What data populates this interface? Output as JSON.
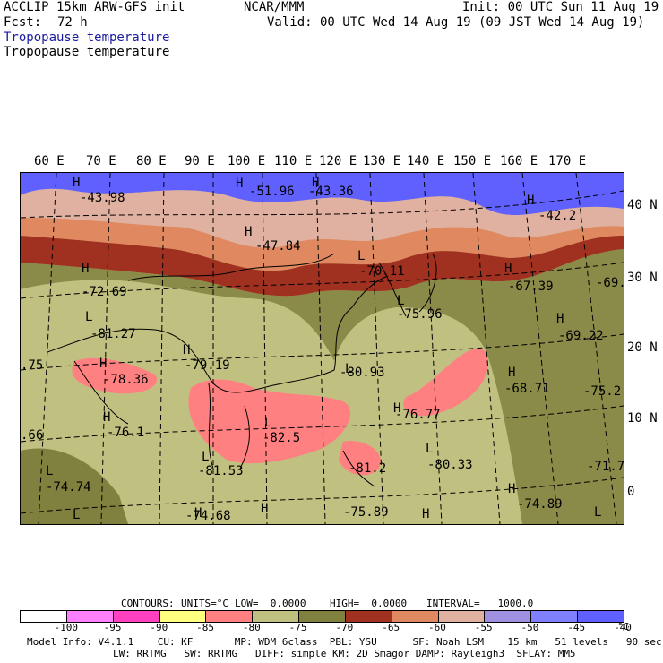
{
  "header": {
    "model": "ACCLIP 15km ARW-GFS init",
    "fcst_label": "Fcst:",
    "fcst_value": "72 h",
    "center": "NCAR/MMM",
    "init": "Init: 00 UTC Sun 11 Aug 19",
    "valid": "Valid: 00 UTC Wed 14 Aug 19 (09 JST Wed 14 Aug 19)",
    "field1": "Tropopause temperature",
    "field2": "Tropopause temperature"
  },
  "lon_labels": [
    "60 E",
    "70 E",
    "80 E",
    "90 E",
    "100 E",
    "110 E",
    "120 E",
    "130 E",
    "140 E",
    "150 E",
    "160 E",
    "170 E"
  ],
  "lat_labels": [
    "40 N",
    "30 N",
    "20 N",
    "10 N",
    "0"
  ],
  "map_labels": [
    {
      "t": "H"
    },
    {
      "t": "-43.98"
    },
    {
      "t": "H"
    },
    {
      "t": "-51.96"
    },
    {
      "t": "H"
    },
    {
      "t": "-43.36"
    },
    {
      "t": "H"
    },
    {
      "t": "-42.2"
    },
    {
      "t": "H"
    },
    {
      "t": "-47.84"
    },
    {
      "t": "L"
    },
    {
      "t": "-70.11"
    },
    {
      "t": "H"
    },
    {
      "t": "-72.69"
    },
    {
      "t": "H"
    },
    {
      "t": "-67.39"
    },
    {
      "t": "-69."
    },
    {
      "t": "L"
    },
    {
      "t": "-75.96"
    },
    {
      "t": "L"
    },
    {
      "t": "-81.27"
    },
    {
      "t": "H"
    },
    {
      "t": "-69.22"
    },
    {
      "t": "H"
    },
    {
      "t": "-79.19"
    },
    {
      "t": ".75"
    },
    {
      "t": "H"
    },
    {
      "t": "-78.36"
    },
    {
      "t": "L"
    },
    {
      "t": "-80.93"
    },
    {
      "t": "H"
    },
    {
      "t": "-68.71"
    },
    {
      "t": "-75.2"
    },
    {
      "t": "H"
    },
    {
      "t": "-76.77"
    },
    {
      "t": "H"
    },
    {
      "t": "-76.1"
    },
    {
      "t": "L"
    },
    {
      "t": ".66"
    },
    {
      "t": "-82.5"
    },
    {
      "t": "L"
    },
    {
      "t": "-80.33"
    },
    {
      "t": "L"
    },
    {
      "t": "-81.53"
    },
    {
      "t": "-81.2"
    },
    {
      "t": "-71.7"
    },
    {
      "t": "L"
    },
    {
      "t": "-74.74"
    },
    {
      "t": "H"
    },
    {
      "t": "-74.89"
    },
    {
      "t": "H"
    },
    {
      "t": "-74.68"
    },
    {
      "t": "H"
    },
    {
      "t": "-75.89"
    },
    {
      "t": "H"
    },
    {
      "t": "L"
    },
    {
      "t": "L"
    }
  ],
  "contour_line": {
    "contours": "CONTOURS:",
    "units": "UNITS=°C",
    "low": "LOW=  0.0000",
    "high": "HIGH=  0.0000",
    "interval": "INTERVAL=   1000.0"
  },
  "legend": {
    "colors": [
      "#ffffff",
      "#ff80ff",
      "#ff40c0",
      "#ffff80",
      "#ff8080",
      "#c0c080",
      "#80803f",
      "#a03020",
      "#e08860",
      "#e0b0a0",
      "#a090e0",
      "#8080ff",
      "#6060ff"
    ],
    "ticks": [
      "-100",
      "-95",
      "-90",
      "-85",
      "-80",
      "-75",
      "-70",
      "-65",
      "-60",
      "-55",
      "-50",
      "-45",
      "-40"
    ],
    "unit": "°C"
  },
  "footer": {
    "line1": "Model Info: V4.1.1    CU: KF       MP: WDM 6class  PBL: YSU      SF: Noah LSM    15 km   51 levels   90 sec",
    "line2": "LW: RRTMG   SW: RRTMG   DIFF: simple KM: 2D Smagor DAMP: Rayleigh3  SFLAY: MM5"
  }
}
